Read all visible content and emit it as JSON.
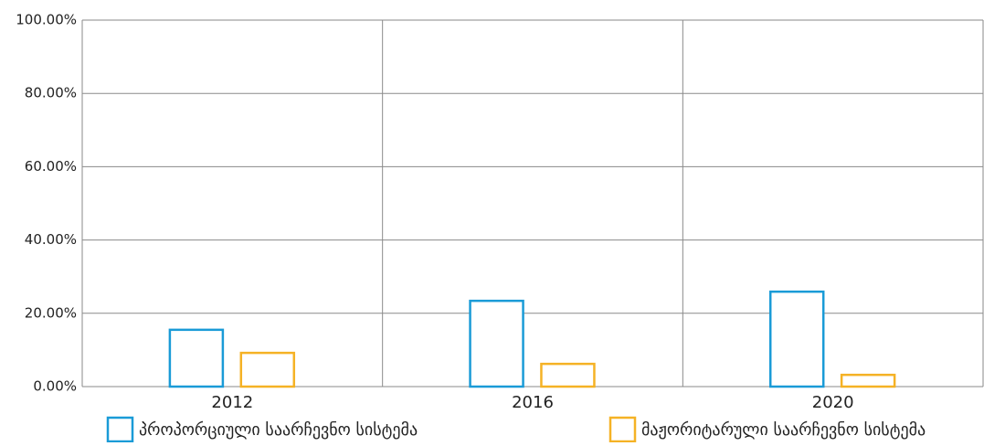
{
  "chart_data": {
    "type": "bar",
    "categories": [
      "2012",
      "2016",
      "2020"
    ],
    "series": [
      {
        "name": "პროპორციული საარჩევნო სისტემა",
        "color": "#1a9bd7",
        "values": [
          15.5,
          23.4,
          25.9
        ]
      },
      {
        "name": "მაჟორიტარული საარჩევნო სისტემა",
        "color": "#f5b225",
        "values": [
          9.2,
          6.2,
          3.2
        ]
      }
    ],
    "ylim": [
      0,
      100
    ],
    "yticks": [
      {
        "value": 0,
        "label": "0.00%"
      },
      {
        "value": 20,
        "label": "20.00%"
      },
      {
        "value": 40,
        "label": "40.00%"
      },
      {
        "value": 60,
        "label": "60.00%"
      },
      {
        "value": 80,
        "label": "80.00%"
      },
      {
        "value": 100,
        "label": "100.00%"
      }
    ],
    "grid": true,
    "legend": "bottom"
  }
}
